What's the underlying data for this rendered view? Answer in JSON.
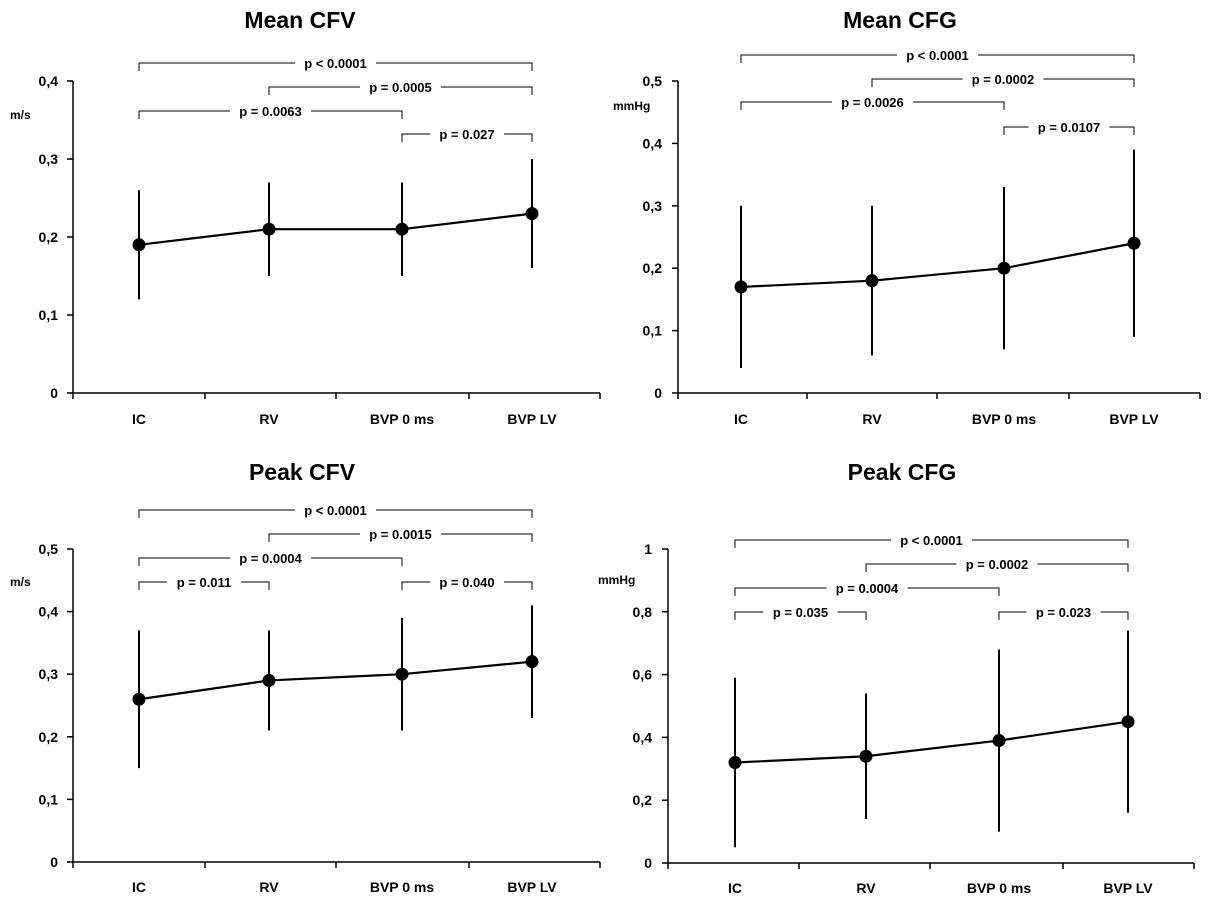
{
  "chart_data": [
    {
      "type": "line",
      "title": "Mean CFV",
      "ylabel": "m/s",
      "categories": [
        "IC",
        "RV",
        "BVP 0 ms",
        "BVP LV"
      ],
      "series": [
        {
          "values": [
            0.19,
            0.21,
            0.21,
            0.23
          ]
        }
      ],
      "error_low": [
        0.12,
        0.15,
        0.15,
        0.16
      ],
      "error_high": [
        0.26,
        0.27,
        0.27,
        0.3
      ],
      "ylim": [
        0,
        0.4
      ],
      "yticks": [
        0,
        0.1,
        0.2,
        0.3,
        0.4
      ],
      "ytick_labels": [
        "0",
        "0,1",
        "0,2",
        "0,3",
        "0,4"
      ],
      "grid": false,
      "comparisons": [
        {
          "from": "IC",
          "to": "BVP LV",
          "label": "p < 0.0001"
        },
        {
          "from": "RV",
          "to": "BVP LV",
          "label": "p = 0.0005"
        },
        {
          "from": "IC",
          "to": "BVP 0 ms",
          "label": "p = 0.0063"
        },
        {
          "from": "BVP 0 ms",
          "to": "BVP LV",
          "label": "p = 0.027"
        }
      ]
    },
    {
      "type": "line",
      "title": "Mean CFG",
      "ylabel": "mmHg",
      "categories": [
        "IC",
        "RV",
        "BVP 0 ms",
        "BVP LV"
      ],
      "series": [
        {
          "values": [
            0.17,
            0.18,
            0.2,
            0.24
          ]
        }
      ],
      "error_low": [
        0.04,
        0.06,
        0.07,
        0.09
      ],
      "error_high": [
        0.3,
        0.3,
        0.33,
        0.39
      ],
      "ylim": [
        0,
        0.5
      ],
      "yticks": [
        0,
        0.1,
        0.2,
        0.3,
        0.4,
        0.5
      ],
      "ytick_labels": [
        "0",
        "0,1",
        "0,2",
        "0,3",
        "0,4",
        "0,5"
      ],
      "grid": false,
      "comparisons": [
        {
          "from": "IC",
          "to": "BVP LV",
          "label": "p < 0.0001"
        },
        {
          "from": "RV",
          "to": "BVP LV",
          "label": "p = 0.0002"
        },
        {
          "from": "IC",
          "to": "BVP 0 ms",
          "label": "p = 0.0026"
        },
        {
          "from": "BVP 0 ms",
          "to": "BVP LV",
          "label": "p = 0.0107"
        }
      ]
    },
    {
      "type": "line",
      "title": "Peak CFV",
      "ylabel": "m/s",
      "categories": [
        "IC",
        "RV",
        "BVP 0 ms",
        "BVP LV"
      ],
      "series": [
        {
          "values": [
            0.26,
            0.29,
            0.3,
            0.32
          ]
        }
      ],
      "error_low": [
        0.15,
        0.21,
        0.21,
        0.23
      ],
      "error_high": [
        0.37,
        0.37,
        0.39,
        0.41
      ],
      "ylim": [
        0,
        0.5
      ],
      "yticks": [
        0,
        0.1,
        0.2,
        0.3,
        0.4,
        0.5
      ],
      "ytick_labels": [
        "0",
        "0,1",
        "0,2",
        "0,3",
        "0,4",
        "0,5"
      ],
      "grid": false,
      "comparisons": [
        {
          "from": "IC",
          "to": "BVP LV",
          "label": "p < 0.0001"
        },
        {
          "from": "RV",
          "to": "BVP LV",
          "label": "p = 0.0015"
        },
        {
          "from": "IC",
          "to": "BVP 0 ms",
          "label": "p = 0.0004"
        },
        {
          "from": "IC",
          "to": "RV",
          "label": "p = 0.011"
        },
        {
          "from": "BVP 0 ms",
          "to": "BVP LV",
          "label": "p = 0.040"
        }
      ]
    },
    {
      "type": "line",
      "title": "Peak CFG",
      "ylabel": "mmHg",
      "categories": [
        "IC",
        "RV",
        "BVP 0 ms",
        "BVP LV"
      ],
      "series": [
        {
          "values": [
            0.32,
            0.34,
            0.39,
            0.45
          ]
        }
      ],
      "error_low": [
        0.05,
        0.14,
        0.1,
        0.16
      ],
      "error_high": [
        0.59,
        0.54,
        0.68,
        0.74
      ],
      "ylim": [
        0,
        1
      ],
      "yticks": [
        0,
        0.2,
        0.4,
        0.6,
        0.8,
        1
      ],
      "ytick_labels": [
        "0",
        "0,2",
        "0,4",
        "0,6",
        "0,8",
        "1"
      ],
      "grid": false,
      "comparisons": [
        {
          "from": "IC",
          "to": "BVP LV",
          "label": "p < 0.0001"
        },
        {
          "from": "RV",
          "to": "BVP LV",
          "label": "p = 0.0002"
        },
        {
          "from": "IC",
          "to": "BVP 0 ms",
          "label": "p = 0.0004"
        },
        {
          "from": "IC",
          "to": "RV",
          "label": "p = 0.035"
        },
        {
          "from": "BVP 0 ms",
          "to": "BVP LV",
          "label": "p = 0.023"
        }
      ]
    }
  ]
}
